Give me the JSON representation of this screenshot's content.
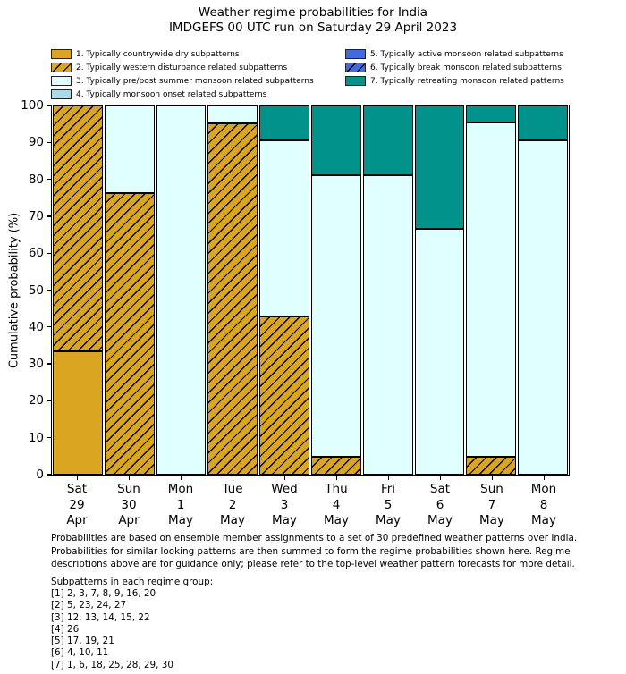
{
  "title": "Weather regime probabilities for India",
  "subtitle": "IMDGEFS 00 UTC run on Saturday 29 April 2023",
  "colors": {
    "background": "#ffffff",
    "axis": "#000000",
    "bar_edge": "#000000",
    "regime1_gold": "#DAA520",
    "regime3_lightcyan": "#E0FFFF",
    "regime4_lightblue": "#ADD8E6",
    "regime5_royalblue": "#4169E1",
    "regime7_teal": "#00928B"
  },
  "legend": {
    "items": [
      {
        "regime": 1,
        "label": "1. Typically countrywide dry subpatterns",
        "color": "#DAA520",
        "hatch": false
      },
      {
        "regime": 2,
        "label": "2. Typically western disturbance related subpatterns",
        "color": "#DAA520",
        "hatch": true
      },
      {
        "regime": 3,
        "label": "3. Typically pre/post summer monsoon related subpatterns",
        "color": "#E0FFFF",
        "hatch": false
      },
      {
        "regime": 4,
        "label": "4. Typically monsoon onset related subpatterns",
        "color": "#ADD8E6",
        "hatch": false
      },
      {
        "regime": 5,
        "label": "5. Typically active monsoon related subpatterns",
        "color": "#4169E1",
        "hatch": false
      },
      {
        "regime": 6,
        "label": "6. Typically break monsoon related subpatterns",
        "color": "#4169E1",
        "hatch": true
      },
      {
        "regime": 7,
        "label": "7. Typically retreating monsoon related patterns",
        "color": "#00928B",
        "hatch": false
      }
    ]
  },
  "chart_data": {
    "type": "bar",
    "stacked": true,
    "title": "Weather regime probabilities for India",
    "subtitle": "IMDGEFS 00 UTC run on Saturday 29 April 2023",
    "xlabel": "",
    "ylabel": "Cumulative probability (%)",
    "ylim": [
      0,
      100
    ],
    "yticks": [
      0,
      10,
      20,
      30,
      40,
      50,
      60,
      70,
      80,
      90,
      100
    ],
    "grid": false,
    "legend_position": "above plot, two columns",
    "categories": [
      [
        "Sat",
        "29",
        "Apr"
      ],
      [
        "Sun",
        "30",
        "Apr"
      ],
      [
        "Mon",
        "1",
        "May"
      ],
      [
        "Tue",
        "2",
        "May"
      ],
      [
        "Wed",
        "3",
        "May"
      ],
      [
        "Thu",
        "4",
        "May"
      ],
      [
        "Fri",
        "5",
        "May"
      ],
      [
        "Sat",
        "6",
        "May"
      ],
      [
        "Sun",
        "7",
        "May"
      ],
      [
        "Mon",
        "8",
        "May"
      ]
    ],
    "series": [
      {
        "regime": 1,
        "name": "1. Typically countrywide dry subpatterns",
        "color": "#DAA520",
        "hatch": false,
        "values": [
          33.3,
          0,
          0,
          0,
          0,
          0,
          0,
          0,
          0,
          0
        ]
      },
      {
        "regime": 2,
        "name": "2. Typically western disturbance related subpatterns",
        "color": "#DAA520",
        "hatch": true,
        "values": [
          66.7,
          76.2,
          0,
          95.2,
          42.9,
          4.8,
          0,
          0,
          4.8,
          0
        ]
      },
      {
        "regime": 3,
        "name": "3. Typically pre/post summer monsoon related subpatterns",
        "color": "#E0FFFF",
        "hatch": false,
        "values": [
          0,
          23.8,
          100,
          4.8,
          47.6,
          76.2,
          81.0,
          66.7,
          90.5,
          90.5
        ]
      },
      {
        "regime": 4,
        "name": "4. Typically monsoon onset related subpatterns",
        "color": "#ADD8E6",
        "hatch": false,
        "values": [
          0,
          0,
          0,
          0,
          0,
          0,
          0,
          0,
          0,
          0
        ]
      },
      {
        "regime": 5,
        "name": "5. Typically active monsoon related subpatterns",
        "color": "#4169E1",
        "hatch": false,
        "values": [
          0,
          0,
          0,
          0,
          0,
          0,
          0,
          0,
          0,
          0
        ]
      },
      {
        "regime": 6,
        "name": "6. Typically break monsoon related subpatterns",
        "color": "#4169E1",
        "hatch": true,
        "values": [
          0,
          0,
          0,
          0,
          0,
          0,
          0,
          0,
          0,
          0
        ]
      },
      {
        "regime": 7,
        "name": "7. Typically retreating monsoon related patterns",
        "color": "#00928B",
        "hatch": false,
        "values": [
          0,
          0,
          0,
          0,
          9.5,
          19.0,
          19.0,
          33.3,
          4.8,
          9.5
        ]
      }
    ]
  },
  "footnote": "Probabilities are based on ensemble member assignments to a set of 30 predefined weather patterns over India.\nProbabilities for similar looking patterns are then summed to form the regime probabilities shown here. Regime\ndescriptions above are for guidance only; please refer to the top-level weather pattern forecasts for more detail.",
  "subpatterns_heading": "Subpatterns in each regime group:",
  "subpatterns_list": "[1] 2, 3, 7, 8, 9, 16, 20\n[2] 5, 23, 24, 27\n[3] 12, 13, 14, 15, 22\n[4] 26\n[5] 17, 19, 21\n[6] 4, 10, 11\n[7] 1, 6, 18, 25, 28, 29, 30"
}
